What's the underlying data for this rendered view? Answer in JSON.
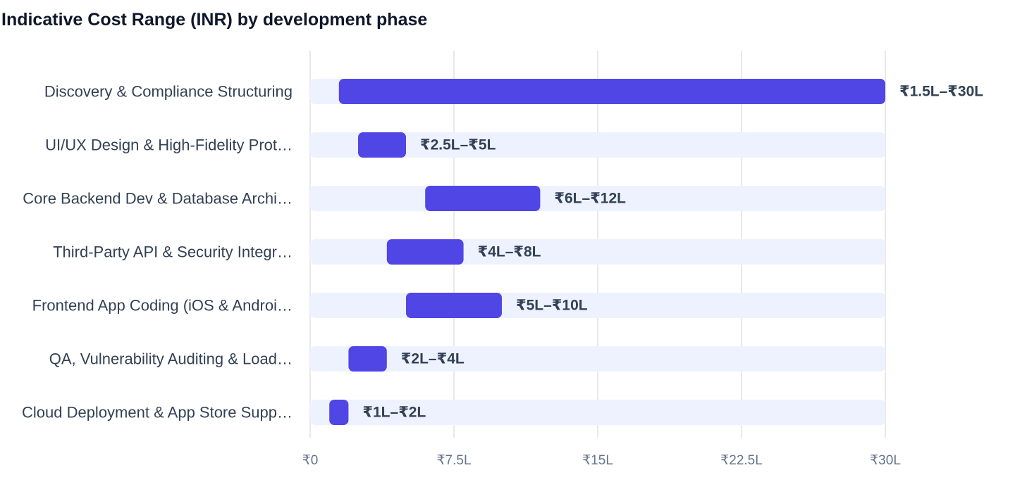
{
  "chart_data": {
    "type": "bar",
    "orientation": "horizontal-range",
    "title": "Indicative Cost Range (INR) by development phase",
    "xlabel": "",
    "ylabel": "",
    "unit": "lakh INR",
    "xlim": [
      0,
      30
    ],
    "grid": true,
    "legend": "none",
    "ticks": [
      {
        "value": 0,
        "label": "₹0"
      },
      {
        "value": 7.5,
        "label": "₹7.5L"
      },
      {
        "value": 15,
        "label": "₹15L"
      },
      {
        "value": 22.5,
        "label": "₹22.5L"
      },
      {
        "value": 30,
        "label": "₹30L"
      }
    ],
    "categories": [
      "Discovery & Compliance Structuring",
      "UI/UX Design & High-Fidelity Prot…",
      "Core Backend Dev & Database Archi…",
      "Third-Party API & Security Integr…",
      "Frontend App Coding (iOS & Androi…",
      "QA, Vulnerability Auditing & Load…",
      "Cloud Deployment & App Store Supp…"
    ],
    "ranges": [
      {
        "low": 1.5,
        "high": 30,
        "label": "₹1.5L–₹30L"
      },
      {
        "low": 2.5,
        "high": 5,
        "label": "₹2.5L–₹5L"
      },
      {
        "low": 6,
        "high": 12,
        "label": "₹6L–₹12L"
      },
      {
        "low": 4,
        "high": 8,
        "label": "₹4L–₹8L"
      },
      {
        "low": 5,
        "high": 10,
        "label": "₹5L–₹10L"
      },
      {
        "low": 2,
        "high": 4,
        "label": "₹2L–₹4L"
      },
      {
        "low": 1,
        "high": 2,
        "label": "₹1L–₹2L"
      }
    ],
    "colors": {
      "bar": "#5046e5",
      "track": "#eef2ff",
      "grid": "#e2e2e2"
    }
  }
}
